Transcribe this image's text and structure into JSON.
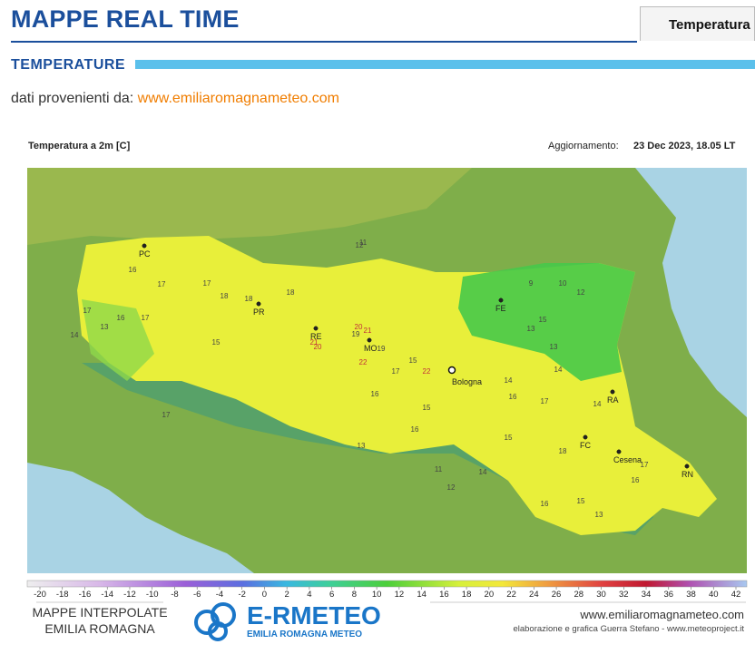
{
  "header": {
    "title": "MAPPE REAL TIME",
    "tab": "Temperatura"
  },
  "section": {
    "title": "TEMPERATURE",
    "source_label": "dati provenienti da:",
    "source_link": "www.emiliaromagnameteo.com"
  },
  "map": {
    "title": "Temperatura a 2m [C]",
    "update_label": "Aggiornamento:",
    "update_value": "23 Dec 2023, 18.05 LT",
    "cities": [
      "PC",
      "PR",
      "RE",
      "MO",
      "FE",
      "Bologna",
      "RA",
      "FC",
      "Cesena",
      "RN"
    ],
    "readings": [
      14,
      16,
      17,
      17,
      18,
      17,
      16,
      13,
      17,
      15,
      18,
      20,
      21,
      20,
      19,
      22,
      21,
      19,
      22,
      17,
      15,
      16,
      12,
      11,
      9,
      10,
      13,
      12,
      15,
      14,
      13,
      17,
      18,
      16,
      14,
      15,
      16,
      17,
      15,
      16,
      13,
      14,
      11,
      12,
      13,
      16,
      15,
      18,
      17,
      14
    ],
    "scale": [
      -20,
      -18,
      -16,
      -14,
      -12,
      -10,
      -8,
      -6,
      -4,
      -2,
      0,
      2,
      4,
      6,
      8,
      10,
      12,
      14,
      16,
      18,
      20,
      22,
      24,
      26,
      28,
      30,
      32,
      34,
      36,
      38,
      40,
      42
    ]
  },
  "footer": {
    "left_line1": "MAPPE INTERPOLATE",
    "left_line2": "EMILIA ROMAGNA",
    "logo": "E-RMETEO",
    "logo_sub": "EMILIA ROMAGNA METEO",
    "site": "www.emiliaromagnameteo.com",
    "credits": "elaborazione e grafica Guerra Stefano - www.meteoproject.it"
  }
}
